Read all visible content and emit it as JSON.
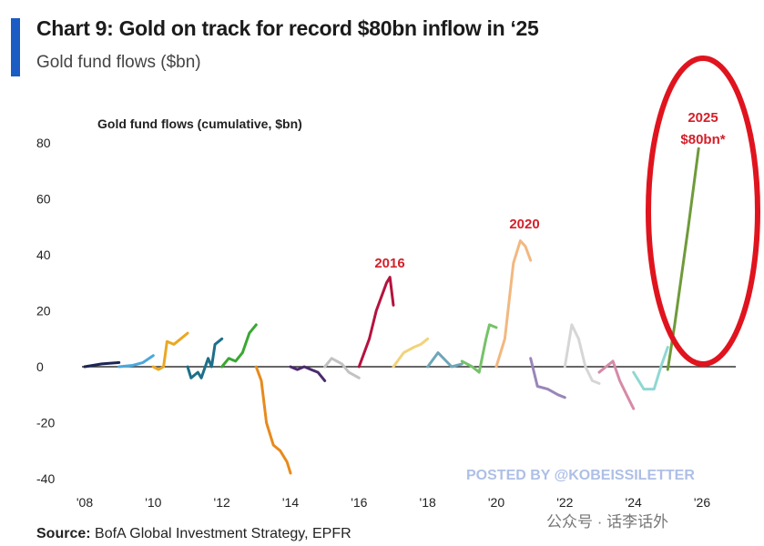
{
  "header": {
    "title": "Chart 9: Gold on track for record $80bn inflow in ‘25",
    "subtitle": "Gold fund flows ($bn)",
    "accent_color": "#1a5bc4"
  },
  "footer": {
    "source_label": "Source:",
    "source_text": "BofA Global Investment Strategy, EPFR",
    "watermark_posted": "POSTED BY @KOBEISSILETTER",
    "watermark_wechat": "公众号 · 话李话外"
  },
  "chart_data": {
    "type": "line",
    "title": "Gold fund flows (cumulative, $bn)",
    "xlabel": "",
    "ylabel": "",
    "xlim": [
      2008,
      2026
    ],
    "ylim": [
      -40,
      80
    ],
    "x_ticks": [
      "'08",
      "'10",
      "'12",
      "'14",
      "'16",
      "'18",
      "'20",
      "'22",
      "'24",
      "'26"
    ],
    "y_ticks": [
      "80",
      "60",
      "40",
      "20",
      "0",
      "-20",
      "-40"
    ],
    "grid": false,
    "annotations": [
      {
        "text": "2016",
        "color": "#d3202a"
      },
      {
        "text": "2020",
        "color": "#d3202a"
      },
      {
        "text": "2025",
        "color": "#d3202a"
      },
      {
        "text": "$80bn*",
        "color": "#d3202a"
      }
    ],
    "highlight": {
      "shape": "ellipse",
      "around": "2025",
      "color": "#e0141e"
    },
    "series": [
      {
        "year": 2008,
        "color": "#1c2554",
        "points": [
          [
            2008,
            0
          ],
          [
            2008.5,
            1
          ],
          [
            2009,
            1.5
          ]
        ]
      },
      {
        "year": 2009,
        "color": "#4aa8dc",
        "points": [
          [
            2009,
            0
          ],
          [
            2009.4,
            0.5
          ],
          [
            2009.7,
            1.5
          ],
          [
            2010,
            4
          ]
        ]
      },
      {
        "year": 2010,
        "color": "#e9a823",
        "points": [
          [
            2010,
            0
          ],
          [
            2010.15,
            -1
          ],
          [
            2010.3,
            0
          ],
          [
            2010.4,
            9
          ],
          [
            2010.6,
            8
          ],
          [
            2010.8,
            10
          ],
          [
            2011,
            12
          ]
        ]
      },
      {
        "year": 2011,
        "color": "#1d6f8a",
        "points": [
          [
            2011,
            0
          ],
          [
            2011.1,
            -4
          ],
          [
            2011.3,
            -2
          ],
          [
            2011.4,
            -4
          ],
          [
            2011.6,
            3
          ],
          [
            2011.7,
            0
          ],
          [
            2011.8,
            8
          ],
          [
            2012,
            10
          ]
        ]
      },
      {
        "year": 2012,
        "color": "#3aa832",
        "points": [
          [
            2012,
            0
          ],
          [
            2012.2,
            3
          ],
          [
            2012.4,
            2
          ],
          [
            2012.6,
            5
          ],
          [
            2012.8,
            12
          ],
          [
            2013,
            15
          ]
        ]
      },
      {
        "year": 2013,
        "color": "#e88a1c",
        "points": [
          [
            2013,
            0
          ],
          [
            2013.15,
            -5
          ],
          [
            2013.3,
            -20
          ],
          [
            2013.5,
            -28
          ],
          [
            2013.7,
            -30
          ],
          [
            2013.9,
            -34
          ],
          [
            2014,
            -38
          ]
        ]
      },
      {
        "year": 2014,
        "color": "#4b2a6e",
        "points": [
          [
            2014,
            0
          ],
          [
            2014.2,
            -1
          ],
          [
            2014.4,
            0
          ],
          [
            2014.6,
            -1
          ],
          [
            2014.8,
            -2
          ],
          [
            2015,
            -5
          ]
        ]
      },
      {
        "year": 2015,
        "color": "#c2c2c2",
        "points": [
          [
            2015,
            0
          ],
          [
            2015.2,
            3
          ],
          [
            2015.5,
            1
          ],
          [
            2015.7,
            -2
          ],
          [
            2016,
            -4
          ]
        ]
      },
      {
        "year": 2016,
        "color": "#b5123e",
        "points": [
          [
            2016,
            0
          ],
          [
            2016.3,
            10
          ],
          [
            2016.5,
            20
          ],
          [
            2016.8,
            30
          ],
          [
            2016.9,
            32
          ],
          [
            2017,
            22
          ]
        ]
      },
      {
        "year": 2017,
        "color": "#f2d27a",
        "points": [
          [
            2017,
            0
          ],
          [
            2017.3,
            5
          ],
          [
            2017.6,
            7
          ],
          [
            2017.8,
            8
          ],
          [
            2018,
            10
          ]
        ]
      },
      {
        "year": 2018,
        "color": "#6fa6b8",
        "points": [
          [
            2018,
            0
          ],
          [
            2018.3,
            5
          ],
          [
            2018.7,
            0
          ],
          [
            2019,
            1
          ]
        ]
      },
      {
        "year": 2019,
        "color": "#76c26a",
        "points": [
          [
            2019,
            2
          ],
          [
            2019.3,
            0
          ],
          [
            2019.5,
            -2
          ],
          [
            2019.7,
            10
          ],
          [
            2019.8,
            15
          ],
          [
            2020,
            14
          ]
        ]
      },
      {
        "year": 2020,
        "color": "#f2b880",
        "points": [
          [
            2020,
            0
          ],
          [
            2020.25,
            10
          ],
          [
            2020.5,
            37
          ],
          [
            2020.7,
            45
          ],
          [
            2020.85,
            43
          ],
          [
            2021,
            38
          ]
        ]
      },
      {
        "year": 2021,
        "color": "#9a86b8",
        "points": [
          [
            2021,
            3
          ],
          [
            2021.2,
            -7
          ],
          [
            2021.5,
            -8
          ],
          [
            2021.8,
            -10
          ],
          [
            2022,
            -11
          ]
        ]
      },
      {
        "year": 2022,
        "color": "#d6d6d6",
        "points": [
          [
            2022,
            0
          ],
          [
            2022.2,
            15
          ],
          [
            2022.4,
            10
          ],
          [
            2022.6,
            0
          ],
          [
            2022.8,
            -5
          ],
          [
            2023,
            -6
          ]
        ]
      },
      {
        "year": 2023,
        "color": "#d68aa8",
        "points": [
          [
            2023,
            -2
          ],
          [
            2023.2,
            0
          ],
          [
            2023.4,
            2
          ],
          [
            2023.6,
            -5
          ],
          [
            2023.8,
            -10
          ],
          [
            2024,
            -15
          ]
        ]
      },
      {
        "year": 2024,
        "color": "#8fd8d2",
        "points": [
          [
            2024,
            -2
          ],
          [
            2024.3,
            -8
          ],
          [
            2024.6,
            -8
          ],
          [
            2024.8,
            0
          ],
          [
            2025,
            7
          ]
        ]
      },
      {
        "year": 2025,
        "color": "#6f9a3a",
        "points": [
          [
            2025,
            -1
          ],
          [
            2025.2,
            15
          ],
          [
            2025.6,
            50
          ],
          [
            2025.9,
            78
          ]
        ]
      }
    ]
  }
}
